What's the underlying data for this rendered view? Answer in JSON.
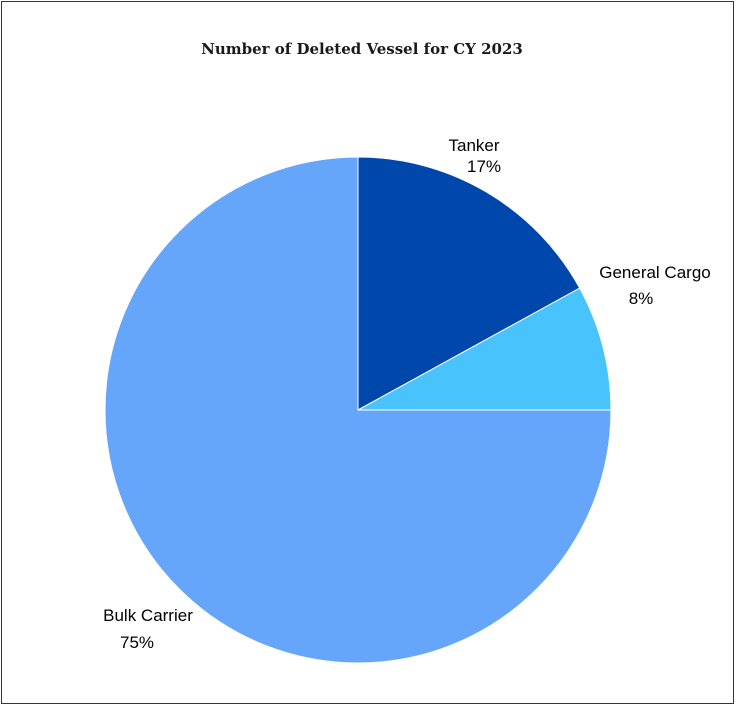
{
  "chart_data": {
    "type": "pie",
    "title": "Number of Deleted Vessel for CY 2023",
    "slices": [
      {
        "name": "Tanker",
        "value": 17,
        "label": "17%",
        "color": "#0047ab"
      },
      {
        "name": "General Cargo",
        "value": 8,
        "label": "8%",
        "color": "#48c3fc"
      },
      {
        "name": "Bulk Carrier",
        "value": 75,
        "label": "75%",
        "color": "#66a6fa"
      }
    ],
    "start_angle": "12 o'clock",
    "direction": "clockwise",
    "legend": "none",
    "labels": "outside with category name and percent"
  }
}
